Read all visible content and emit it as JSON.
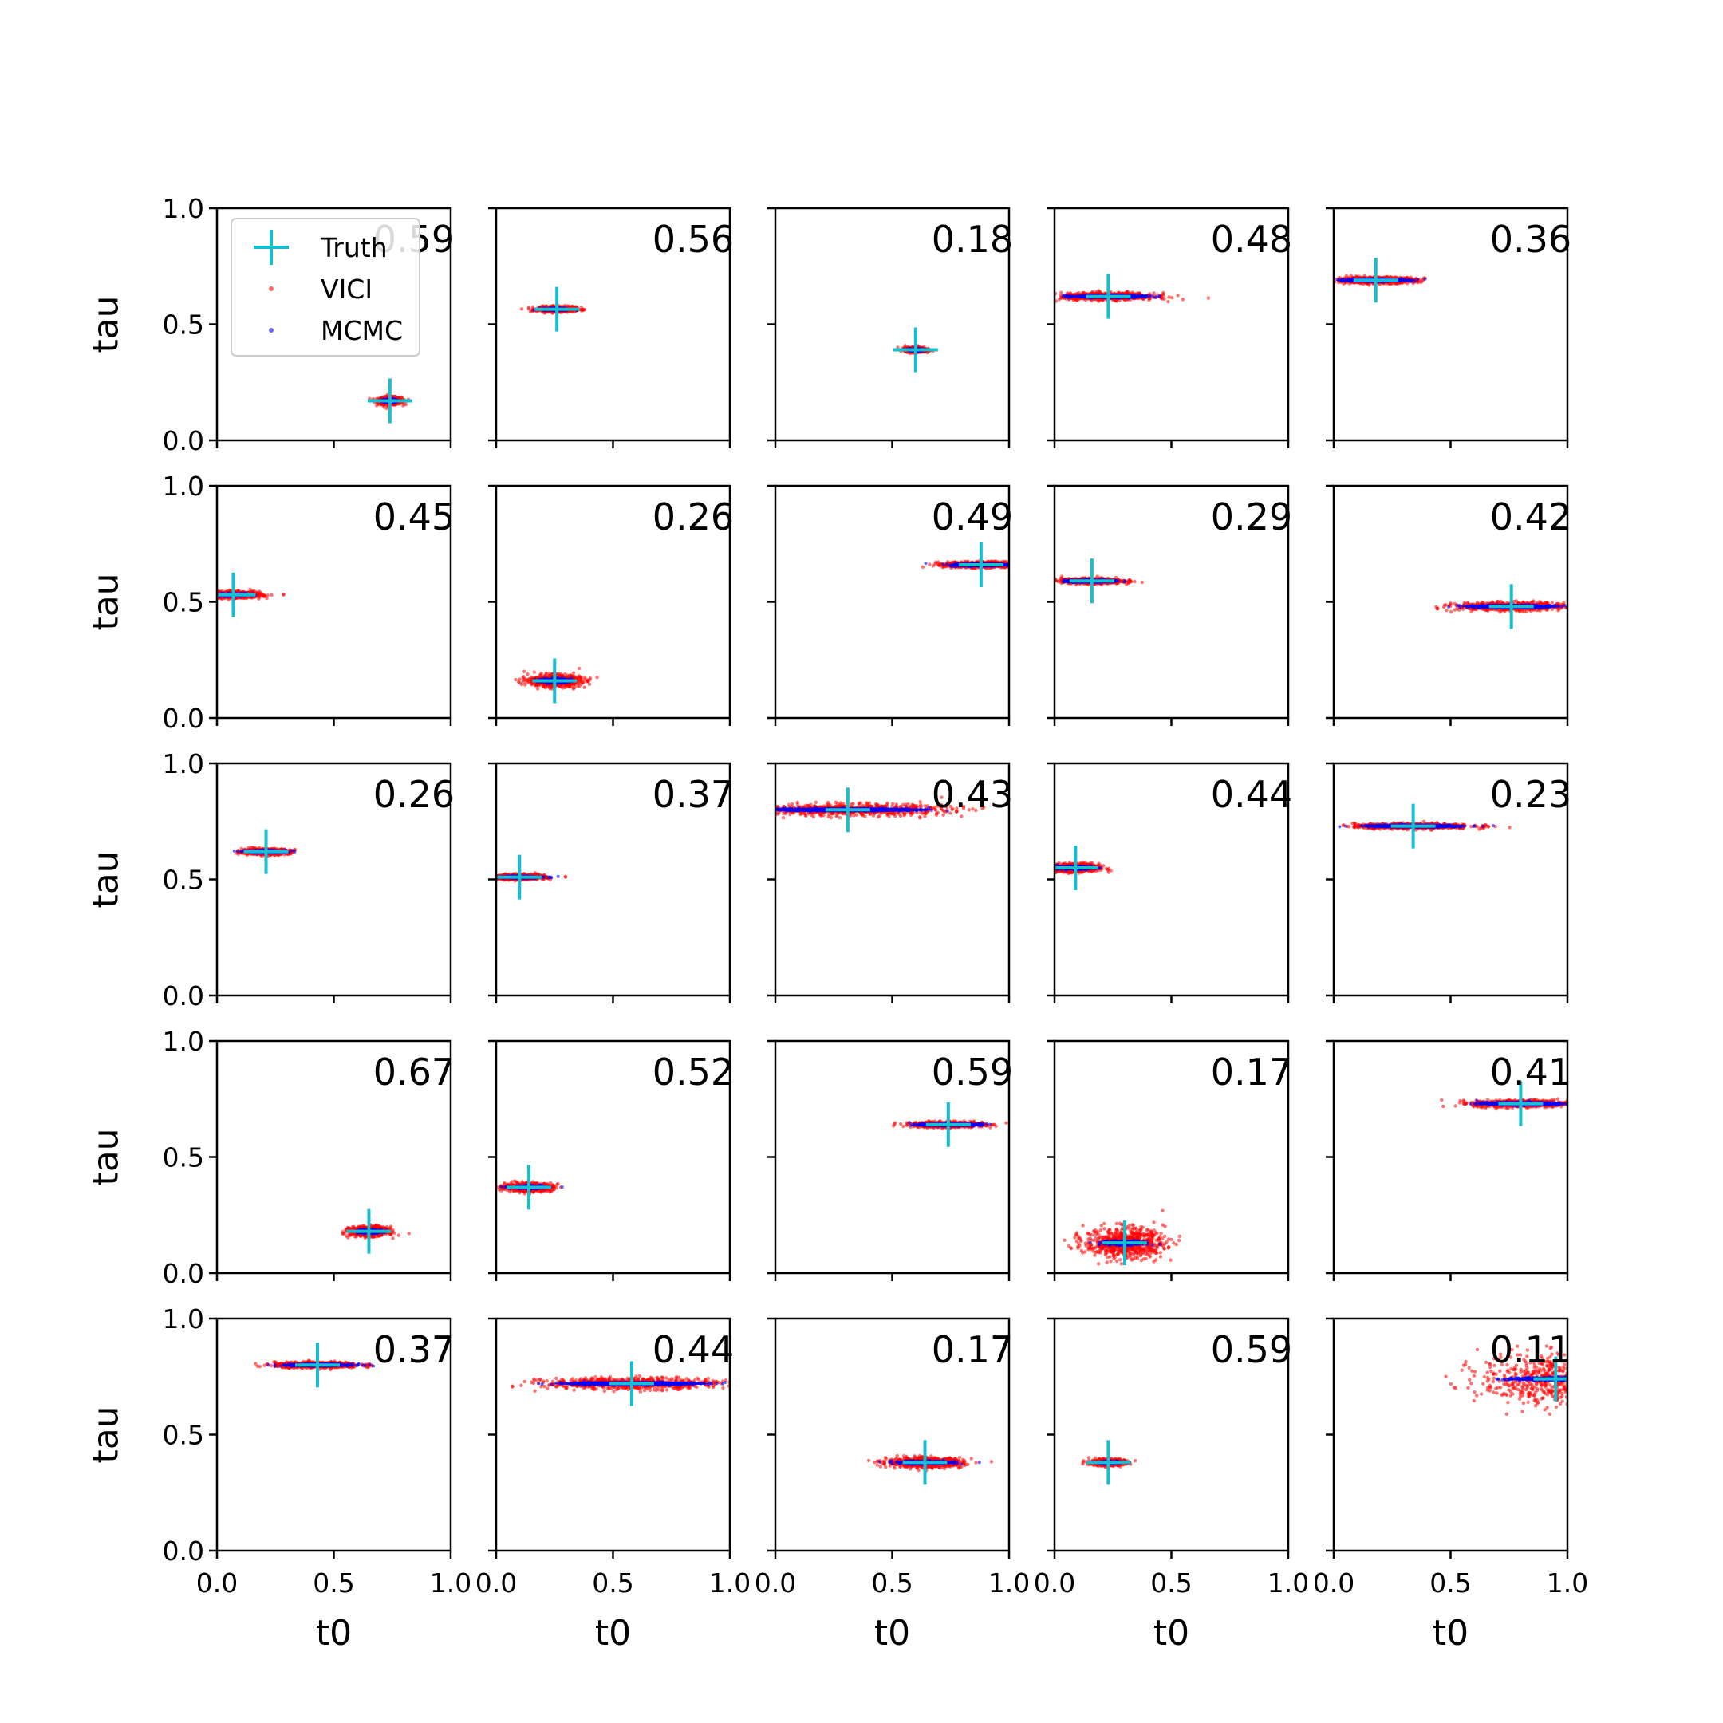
{
  "chart_data": {
    "type": "scatter",
    "layout": {
      "rows": 5,
      "cols": 5
    },
    "xlabel": "t0",
    "ylabel": "tau",
    "xlim": [
      0,
      1
    ],
    "ylim": [
      0,
      1
    ],
    "xticks": [
      "0.0",
      "0.5",
      "1.0"
    ],
    "yticks": [
      "0.0",
      "0.5",
      "1.0"
    ],
    "legend": {
      "placement": "upper-left (first panel)",
      "entries": [
        {
          "name": "Truth",
          "marker": "plus",
          "color": "#17becf"
        },
        {
          "name": "VICI",
          "marker": "dot",
          "color": "#ff0000"
        },
        {
          "name": "MCMC",
          "marker": "dot",
          "color": "#0000ff"
        }
      ]
    },
    "panels": [
      {
        "annotation": "0.59",
        "truth": [
          0.74,
          0.17
        ],
        "vici_spread": [
          0.1,
          0.032
        ],
        "mcmc_spread": [
          0.06,
          0.014
        ]
      },
      {
        "annotation": "0.56",
        "truth": [
          0.26,
          0.565
        ],
        "vici_spread": [
          0.16,
          0.022
        ],
        "mcmc_spread": [
          0.12,
          0.01
        ]
      },
      {
        "annotation": "0.18",
        "truth": [
          0.6,
          0.39
        ],
        "vici_spread": [
          0.09,
          0.02
        ],
        "mcmc_spread": [
          0.07,
          0.01
        ]
      },
      {
        "annotation": "0.48",
        "truth": [
          0.23,
          0.62
        ],
        "vici_spread": [
          0.4,
          0.03
        ],
        "mcmc_spread": [
          0.34,
          0.012
        ]
      },
      {
        "annotation": "0.36",
        "truth": [
          0.18,
          0.69
        ],
        "vici_spread": [
          0.34,
          0.026
        ],
        "mcmc_spread": [
          0.34,
          0.012
        ]
      },
      {
        "annotation": "0.45",
        "truth": [
          0.07,
          0.53
        ],
        "vici_spread": [
          0.24,
          0.028
        ],
        "mcmc_spread": [
          0.17,
          0.012
        ]
      },
      {
        "annotation": "0.26",
        "truth": [
          0.25,
          0.16
        ],
        "vici_spread": [
          0.22,
          0.05
        ],
        "mcmc_spread": [
          0.14,
          0.02
        ]
      },
      {
        "annotation": "0.49",
        "truth": [
          0.88,
          0.66
        ],
        "vici_spread": [
          0.3,
          0.026
        ],
        "mcmc_spread": [
          0.28,
          0.012
        ]
      },
      {
        "annotation": "0.29",
        "truth": [
          0.16,
          0.59
        ],
        "vici_spread": [
          0.26,
          0.022
        ],
        "mcmc_spread": [
          0.24,
          0.01
        ]
      },
      {
        "annotation": "0.42",
        "truth": [
          0.76,
          0.48
        ],
        "vici_spread": [
          0.46,
          0.034
        ],
        "mcmc_spread": [
          0.42,
          0.012
        ]
      },
      {
        "annotation": "0.26",
        "truth": [
          0.21,
          0.62
        ],
        "vici_spread": [
          0.2,
          0.024
        ],
        "mcmc_spread": [
          0.18,
          0.01
        ]
      },
      {
        "annotation": "0.37",
        "truth": [
          0.1,
          0.51
        ],
        "vici_spread": [
          0.22,
          0.022
        ],
        "mcmc_spread": [
          0.2,
          0.01
        ]
      },
      {
        "annotation": "0.43",
        "truth": [
          0.31,
          0.8
        ],
        "vici_spread": [
          0.84,
          0.05
        ],
        "mcmc_spread": [
          0.72,
          0.014
        ]
      },
      {
        "annotation": "0.44",
        "truth": [
          0.09,
          0.55
        ],
        "vici_spread": [
          0.2,
          0.036
        ],
        "mcmc_spread": [
          0.16,
          0.014
        ]
      },
      {
        "annotation": "0.23",
        "truth": [
          0.34,
          0.73
        ],
        "vici_spread": [
          0.5,
          0.022
        ],
        "mcmc_spread": [
          0.46,
          0.01
        ]
      },
      {
        "annotation": "0.67",
        "truth": [
          0.65,
          0.18
        ],
        "vici_spread": [
          0.16,
          0.04
        ],
        "mcmc_spread": [
          0.12,
          0.016
        ]
      },
      {
        "annotation": "0.52",
        "truth": [
          0.14,
          0.37
        ],
        "vici_spread": [
          0.2,
          0.034
        ],
        "mcmc_spread": [
          0.16,
          0.012
        ]
      },
      {
        "annotation": "0.59",
        "truth": [
          0.74,
          0.64
        ],
        "vici_spread": [
          0.3,
          0.024
        ],
        "mcmc_spread": [
          0.28,
          0.01
        ]
      },
      {
        "annotation": "0.17",
        "truth": [
          0.3,
          0.13
        ],
        "vici_spread": [
          0.34,
          0.13
        ],
        "mcmc_spread": [
          0.2,
          0.02
        ]
      },
      {
        "annotation": "0.41",
        "truth": [
          0.8,
          0.73
        ],
        "vici_spread": [
          0.4,
          0.03
        ],
        "mcmc_spread": [
          0.38,
          0.014
        ]
      },
      {
        "annotation": "0.37",
        "truth": [
          0.43,
          0.8
        ],
        "vici_spread": [
          0.36,
          0.024
        ],
        "mcmc_spread": [
          0.3,
          0.01
        ]
      },
      {
        "annotation": "0.44",
        "truth": [
          0.58,
          0.72
        ],
        "vici_spread": [
          0.74,
          0.048
        ],
        "mcmc_spread": [
          0.66,
          0.014
        ]
      },
      {
        "annotation": "0.17",
        "truth": [
          0.64,
          0.38
        ],
        "vici_spread": [
          0.32,
          0.04
        ],
        "mcmc_spread": [
          0.26,
          0.014
        ]
      },
      {
        "annotation": "0.59",
        "truth": [
          0.23,
          0.38
        ],
        "vici_spread": [
          0.14,
          0.026
        ],
        "mcmc_spread": [
          0.1,
          0.01
        ]
      },
      {
        "annotation": "0.11",
        "truth": [
          0.95,
          0.74
        ],
        "vici_spread": [
          0.64,
          0.22
        ],
        "mcmc_spread": [
          0.42,
          0.018
        ]
      }
    ]
  },
  "colors": {
    "truth": "#17becf",
    "vici": "#ff0000",
    "mcmc": "#0000ff",
    "axes": "#000000"
  }
}
